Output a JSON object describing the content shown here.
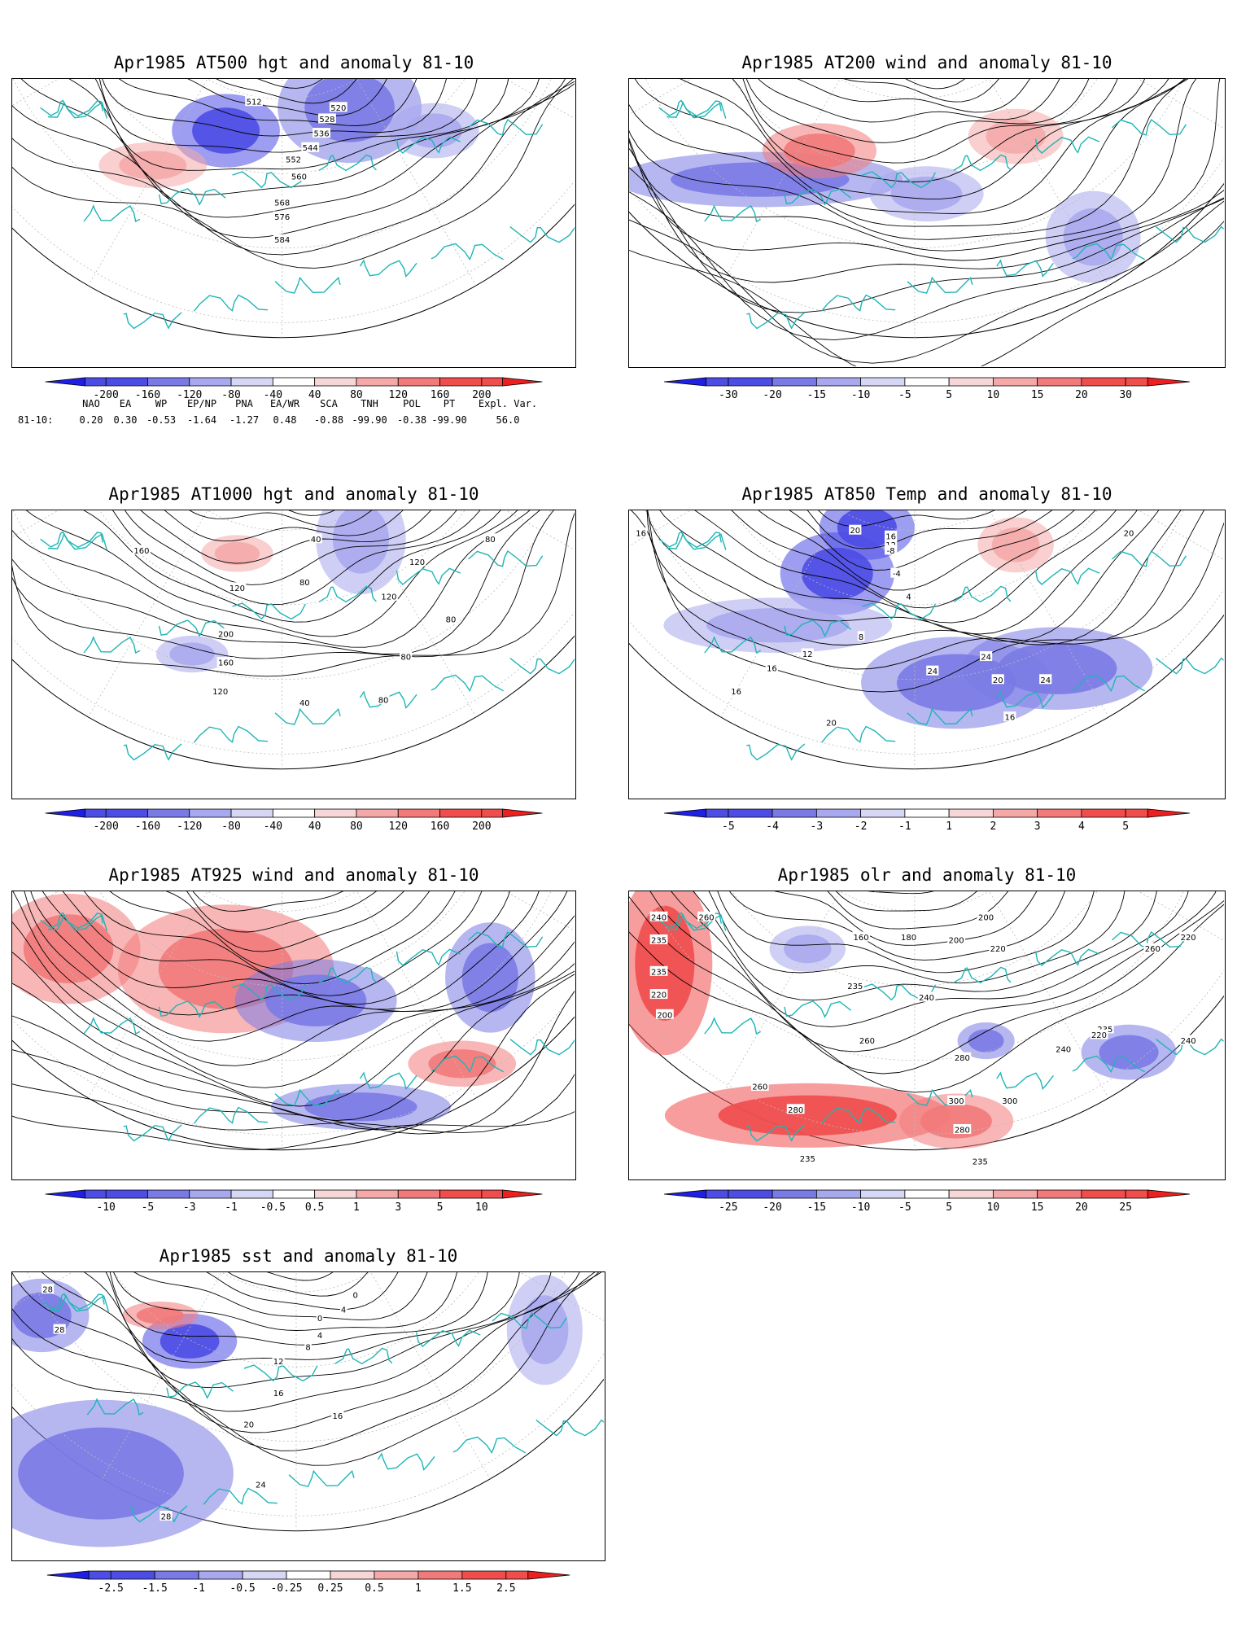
{
  "panels": [
    {
      "id": "at500",
      "title": "Apr1985 AT500 hgt and anomaly 81-10",
      "colorbar_ticks": [
        "-200",
        "-160",
        "-120",
        "-80",
        "-40",
        "40",
        "80",
        "120",
        "160",
        "200"
      ],
      "contour_labels": [
        "512",
        "520",
        "528",
        "536",
        "544",
        "552",
        "560",
        "568",
        "576",
        "584"
      ],
      "anomaly_blobs": [
        {
          "sign": "neg",
          "strength": 0.8
        },
        {
          "sign": "neg",
          "strength": 0.55
        },
        {
          "sign": "neg",
          "strength": 0.3
        },
        {
          "sign": "pos",
          "strength": 0.25
        }
      ]
    },
    {
      "id": "at200",
      "title": "Apr1985 AT200 wind and anomaly 81-10",
      "colorbar_ticks": [
        "-30",
        "-20",
        "-15",
        "-10",
        "-5",
        "5",
        "10",
        "15",
        "20",
        "30"
      ],
      "contour_labels": [],
      "anomaly_blobs": [
        {
          "sign": "neg",
          "strength": 0.45
        },
        {
          "sign": "pos",
          "strength": 0.4
        },
        {
          "sign": "neg",
          "strength": 0.35
        },
        {
          "sign": "pos",
          "strength": 0.3
        },
        {
          "sign": "neg",
          "strength": 0.3
        }
      ]
    },
    {
      "id": "at1000",
      "title": "Apr1985 AT1000 hgt and anomaly 81-10",
      "colorbar_ticks": [
        "-200",
        "-160",
        "-120",
        "-80",
        "-40",
        "40",
        "80",
        "120",
        "160",
        "200"
      ],
      "contour_labels": [
        "160",
        "120",
        "200",
        "160",
        "120",
        "80",
        "120",
        "40",
        "120",
        "80",
        "80",
        "80",
        "80",
        "40"
      ],
      "anomaly_blobs": [
        {
          "sign": "neg",
          "strength": 0.3
        },
        {
          "sign": "neg",
          "strength": 0.2
        },
        {
          "sign": "pos",
          "strength": 0.15
        }
      ]
    },
    {
      "id": "at850",
      "title": "Apr1985 AT850 Temp and anomaly 81-10",
      "colorbar_ticks": [
        "-5",
        "-4",
        "-3",
        "-2",
        "-1",
        "1",
        "2",
        "3",
        "4",
        "5"
      ],
      "contour_labels": [
        "16",
        "20",
        "16",
        "12",
        "-8",
        "-4",
        "4",
        "8",
        "12",
        "16",
        "16",
        "20",
        "24",
        "24",
        "20",
        "16",
        "24",
        "20"
      ],
      "anomaly_blobs": [
        {
          "sign": "neg",
          "strength": 0.85
        },
        {
          "sign": "neg",
          "strength": 0.75
        },
        {
          "sign": "neg",
          "strength": 0.6
        },
        {
          "sign": "neg",
          "strength": 0.5
        },
        {
          "sign": "neg",
          "strength": 0.3
        },
        {
          "sign": "pos",
          "strength": 0.35
        }
      ]
    },
    {
      "id": "at925",
      "title": "Apr1985 AT925 wind and anomaly 81-10",
      "colorbar_ticks": [
        "-10",
        "-5",
        "-3",
        "-1",
        "-0.5",
        "0.5",
        "1",
        "3",
        "5",
        "10"
      ],
      "contour_labels": [],
      "anomaly_blobs": [
        {
          "sign": "pos",
          "strength": 0.6
        },
        {
          "sign": "pos",
          "strength": 0.5
        },
        {
          "sign": "neg",
          "strength": 0.55
        },
        {
          "sign": "neg",
          "strength": 0.45
        },
        {
          "sign": "pos",
          "strength": 0.45
        },
        {
          "sign": "neg",
          "strength": 0.4
        }
      ]
    },
    {
      "id": "olr",
      "title": "Apr1985 olr and anomaly 81-10",
      "colorbar_ticks": [
        "-25",
        "-20",
        "-15",
        "-10",
        "-5",
        "5",
        "10",
        "15",
        "20",
        "25"
      ],
      "contour_labels": [
        "240",
        "260",
        "235",
        "235",
        "220",
        "200",
        "200",
        "180",
        "160",
        "200",
        "220",
        "235",
        "240",
        "260",
        "260",
        "280",
        "280",
        "300",
        "280",
        "300",
        "235",
        "220",
        "260",
        "235",
        "240",
        "235",
        "220",
        "240"
      ],
      "anomaly_blobs": [
        {
          "sign": "pos",
          "strength": 0.8
        },
        {
          "sign": "pos",
          "strength": 0.7
        },
        {
          "sign": "neg",
          "strength": 0.6
        },
        {
          "sign": "neg",
          "strength": 0.45
        },
        {
          "sign": "pos",
          "strength": 0.5
        },
        {
          "sign": "neg",
          "strength": 0.35
        }
      ]
    },
    {
      "id": "sst",
      "title": "Apr1985 sst and anomaly 81-10",
      "colorbar_ticks": [
        "-2.5",
        "-1.5",
        "-1",
        "-0.5",
        "-0.25",
        "0.25",
        "0.5",
        "1",
        "1.5",
        "2.5"
      ],
      "contour_labels": [
        "28",
        "28",
        "0",
        "4",
        "8",
        "12",
        "16",
        "20",
        "24",
        "28",
        "16",
        "4",
        "0"
      ],
      "anomaly_blobs": [
        {
          "sign": "neg",
          "strength": 0.75
        },
        {
          "sign": "neg",
          "strength": 0.55
        },
        {
          "sign": "neg",
          "strength": 0.45
        },
        {
          "sign": "pos",
          "strength": 0.5
        },
        {
          "sign": "neg",
          "strength": 0.3
        }
      ]
    }
  ],
  "teleconnections": {
    "headers": [
      "NAO",
      "EA",
      "WP",
      "EP/NP",
      "PNA",
      "EA/WR",
      "SCA",
      "TNH",
      "POL",
      "PT",
      "Expl. Var."
    ],
    "row_label": "81-10:",
    "values": [
      "0.20",
      "0.30",
      "-0.53",
      "-1.64",
      "-1.27",
      "0.48",
      "-0.88",
      "-99.90",
      "-0.38",
      "-99.90",
      "56.0"
    ]
  },
  "colors": {
    "coastline": "#1fb5b5",
    "neg_scale": [
      "#1f1fe6",
      "#4d4de6",
      "#7a7ae6",
      "#a8a8ee",
      "#d6d6f5"
    ],
    "pos_scale": [
      "#f6d6d6",
      "#f4a8a8",
      "#f27a7a",
      "#f04d4d",
      "#ee1f1f"
    ],
    "contour": "#000000",
    "grid": "#bbbbbb"
  }
}
